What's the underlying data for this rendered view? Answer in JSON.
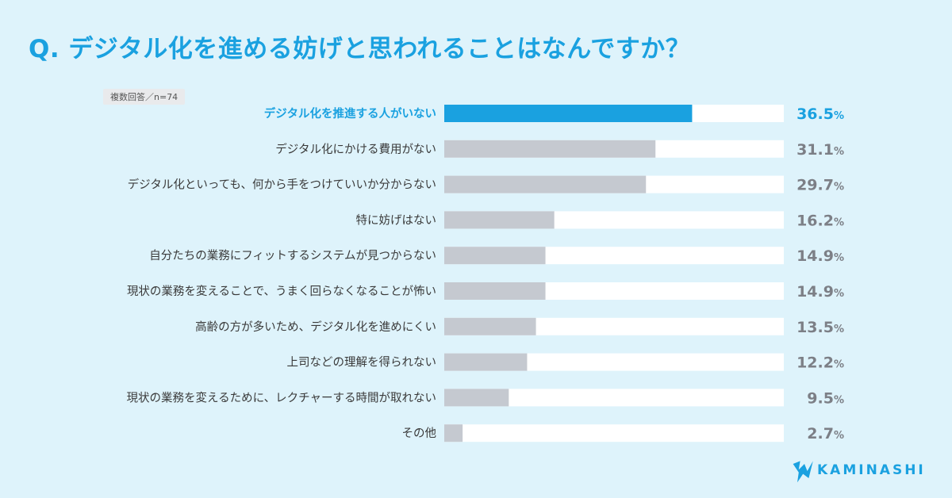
{
  "header": {
    "title": "Q. デジタル化を進める妨げと思われることはなんですか？",
    "sample_note": "複数回答／n=74"
  },
  "brand": {
    "name": "KAMINASHI",
    "icon": "kaminashi-logo-icon"
  },
  "colors": {
    "highlight": "#1aa1e0",
    "bar": "#c5c9d0",
    "track": "#ffffff",
    "background": "#def3fb"
  },
  "chart_data": {
    "type": "bar",
    "orientation": "horizontal",
    "unit": "%",
    "xlim": [
      0,
      50
    ],
    "grid": false,
    "categories": [
      "デジタル化を推進する人がいない",
      "デジタル化にかける費用がない",
      "デジタル化といっても、何から手をつけていいか分からない",
      "特に妨げはない",
      "自分たちの業務にフィットするシステムが見つからない",
      "現状の業務を変えることで、うまく回らなくなることが怖い",
      "高齢の方が多いため、デジタル化を進めにくい",
      "上司などの理解を得られない",
      "現状の業務を変えるために、レクチャーする時間が取れない",
      "その他"
    ],
    "values": [
      36.5,
      31.1,
      29.7,
      16.2,
      14.9,
      14.9,
      13.5,
      12.2,
      9.5,
      2.7
    ],
    "value_labels": [
      "36.5",
      "31.1",
      "29.7",
      "16.2",
      "14.9",
      "14.9",
      "13.5",
      "12.2",
      "9.5",
      "2.7"
    ],
    "highlight_index": 0
  }
}
